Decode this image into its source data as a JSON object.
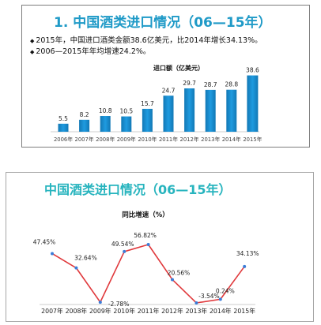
{
  "panel1": {
    "title": "1. 中国酒类进口情况（06—15年）",
    "bullets": [
      "2015年，中国进口酒类金额38.6亿美元，比2014年增长34.13%。",
      "2006—2015年年均增速24.2%。"
    ]
  },
  "panel2": {
    "title": "中国酒类进口情况（06—15年）"
  },
  "colors": {
    "bar": "#1f9be0",
    "bar_dark": "#1278b5",
    "line": "#e0393c",
    "marker": "#3b7dd8",
    "title_blue": "#1f9ac7",
    "title_teal": "#27b4be"
  },
  "chart_data": [
    {
      "type": "bar",
      "title": "进口额（亿美元）",
      "categories": [
        "2006年",
        "2007年",
        "2008年",
        "2009年",
        "2010年",
        "2011年",
        "2012年",
        "2013年",
        "2014年",
        "2015年"
      ],
      "values": [
        5.5,
        8.2,
        10.8,
        10.5,
        15.7,
        24.7,
        29.7,
        28.7,
        28.8,
        38.6
      ],
      "data_labels": [
        "5.5",
        "8.2",
        "10.8",
        "10.5",
        "15.7",
        "24.7",
        "29.7",
        "28.7",
        "28.8",
        "38.6"
      ],
      "ylim": [
        0,
        40
      ],
      "grid": false,
      "highlight_index": 9
    },
    {
      "type": "line",
      "title": "同比增速（%）",
      "categories": [
        "2007年",
        "2008年",
        "2009年",
        "2010年",
        "2011年",
        "2012年",
        "2013年",
        "2014年",
        "2015年"
      ],
      "values": [
        47.45,
        32.64,
        -2.78,
        49.54,
        56.82,
        20.56,
        -3.54,
        0.24,
        34.13
      ],
      "data_labels": [
        "47.45%",
        "32.64%",
        "-2.78%",
        "49.54%",
        "56.82%",
        "20.56%",
        "-3.54%",
        "0.24%",
        "34.13%"
      ],
      "ylim": [
        -5,
        60
      ],
      "grid": false
    }
  ]
}
